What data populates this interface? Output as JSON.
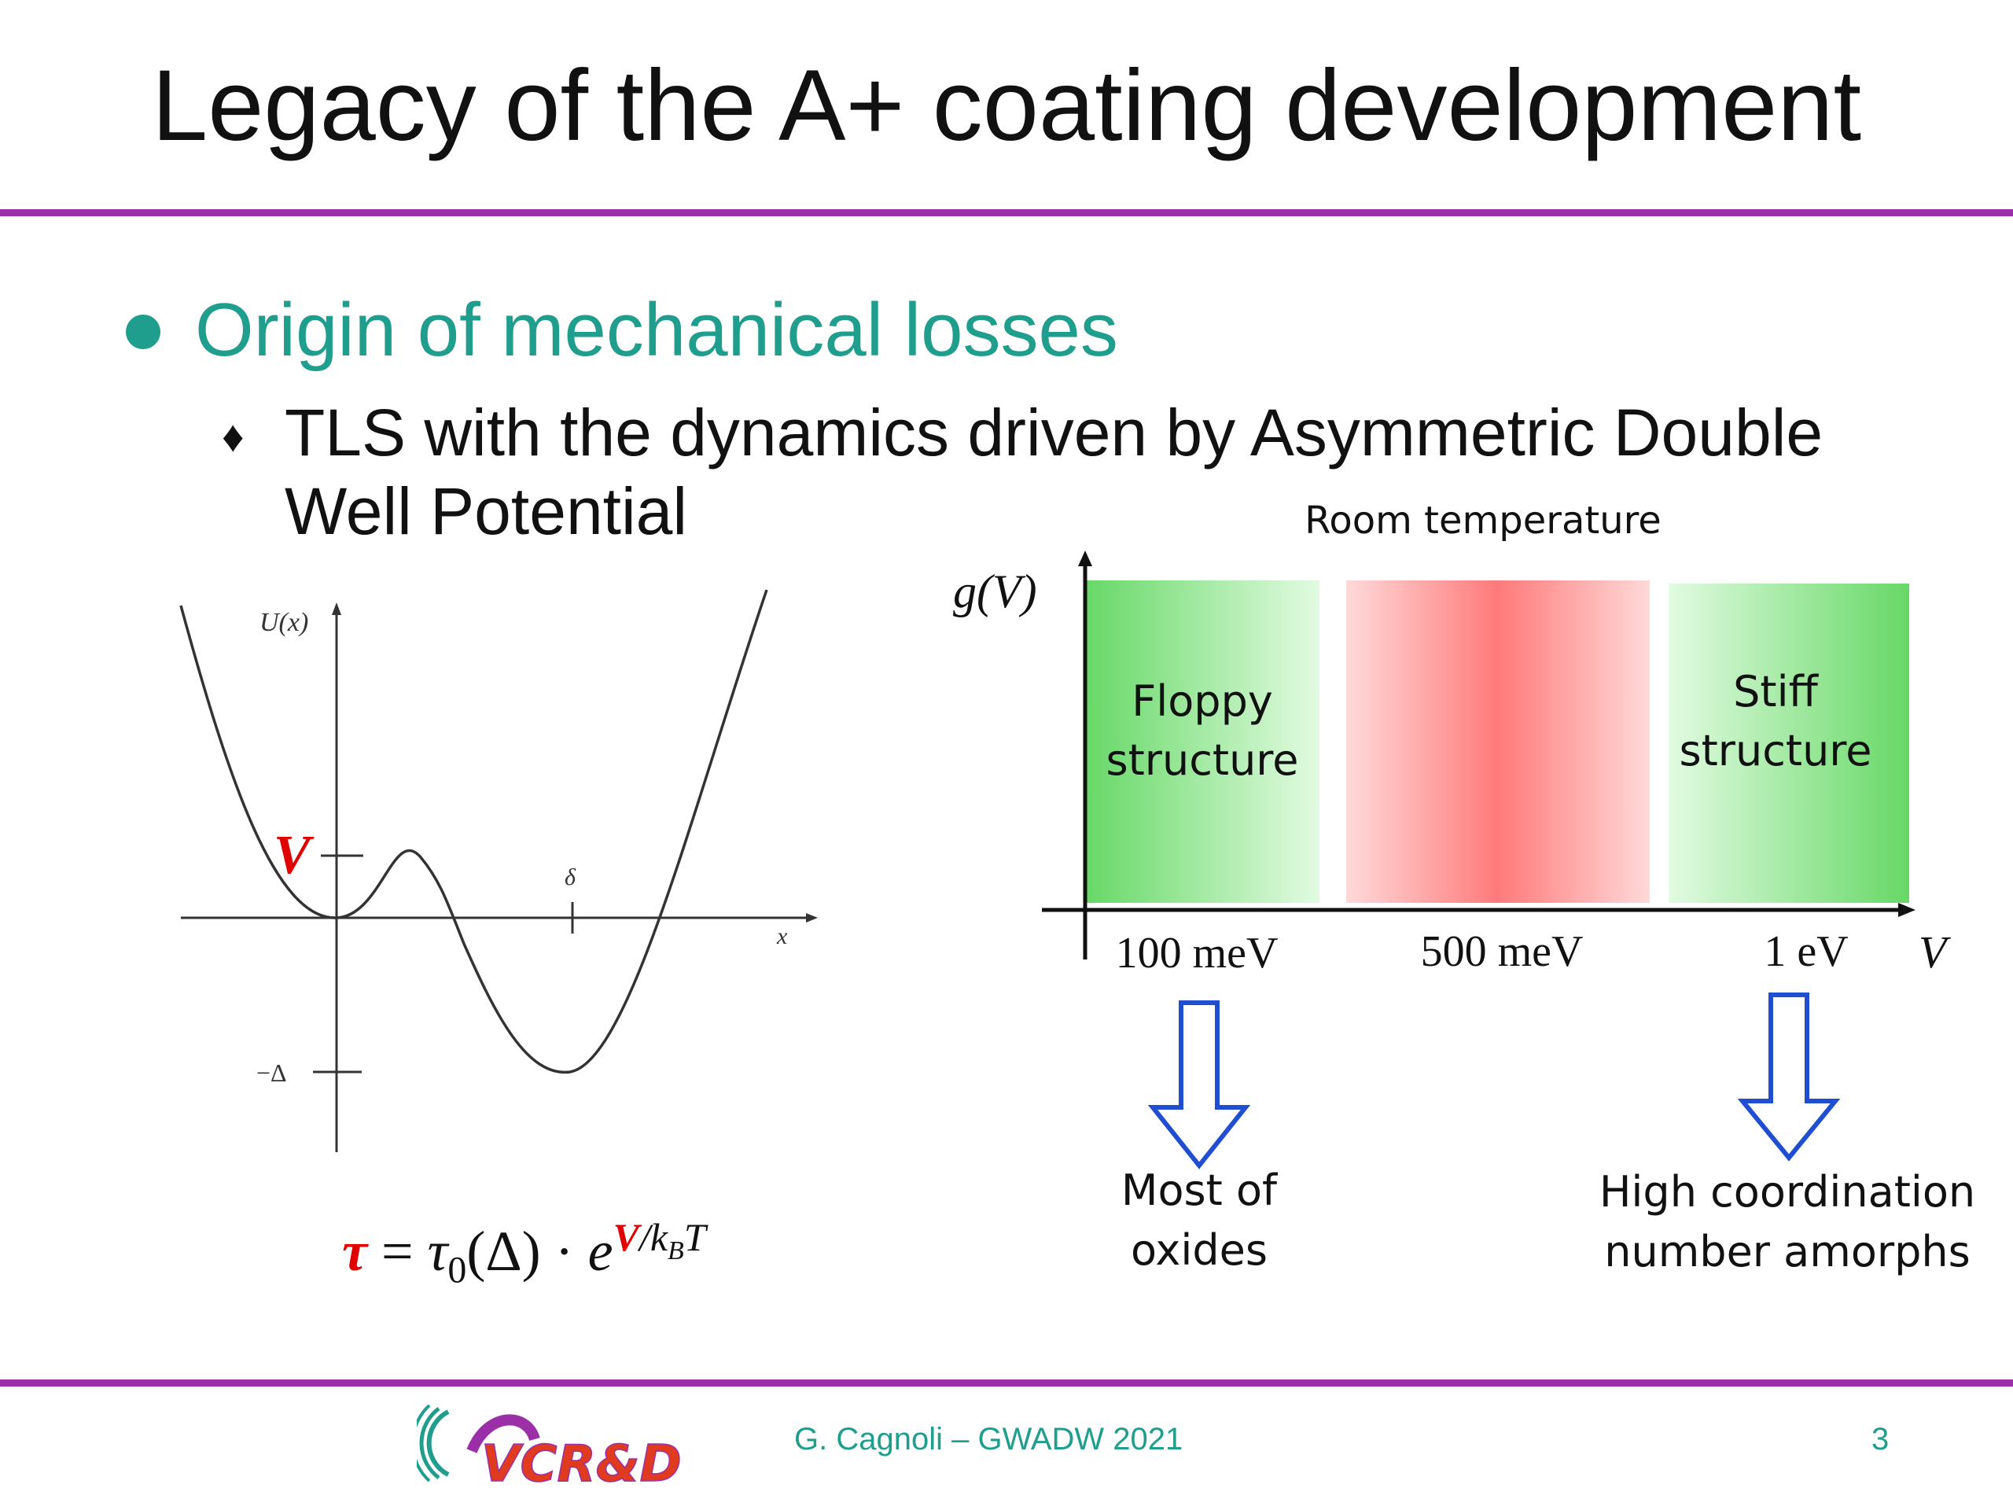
{
  "slide": {
    "title": "Legacy of the A+ coating development",
    "bullet1": "Origin of mechanical losses",
    "bullet2": "TLS with the dynamics driven by Asymmetric Double Well Potential",
    "bullet2_marker": "♦"
  },
  "potential_plot": {
    "y_label": "U(x)",
    "x_label": "x",
    "v_label": "V",
    "delta_label": "δ",
    "minus_delta_label": "−Δ",
    "curve_color": "#333333",
    "highlight_color": "#e00000"
  },
  "formula": {
    "lhs": "τ",
    "equals": "=",
    "tau0": "τ",
    "sub0": "0",
    "arg": "(Δ)",
    "dot": "·",
    "base": "e",
    "exp_v": "V",
    "exp_rest": "/k",
    "exp_sub": "B",
    "exp_t": "T"
  },
  "distribution": {
    "header": "Room temperature",
    "y_axis": "g(V)",
    "x_axis": "V",
    "bands": [
      {
        "label_line1": "Floppy",
        "label_line2": "structure",
        "color": "#66d866"
      },
      {
        "label_line1": "",
        "label_line2": "",
        "color": "#ff7a7a"
      },
      {
        "label_line1": "Stiff",
        "label_line2": "structure",
        "color": "#66d866"
      }
    ],
    "ticks": [
      "100 meV",
      "500 meV",
      "1 eV"
    ],
    "arrow_color": "#1f4fd0",
    "notes": [
      {
        "line1": "Most of",
        "line2": "oxides"
      },
      {
        "line1": "High coordination",
        "line2": "number amorphs"
      }
    ]
  },
  "footer": {
    "logo_text": "VCR&D",
    "author": "G. Cagnoli – GWADW 2021",
    "page": "3",
    "accent_color": "#9b2fa8",
    "teal_color": "#1f9e8e"
  }
}
